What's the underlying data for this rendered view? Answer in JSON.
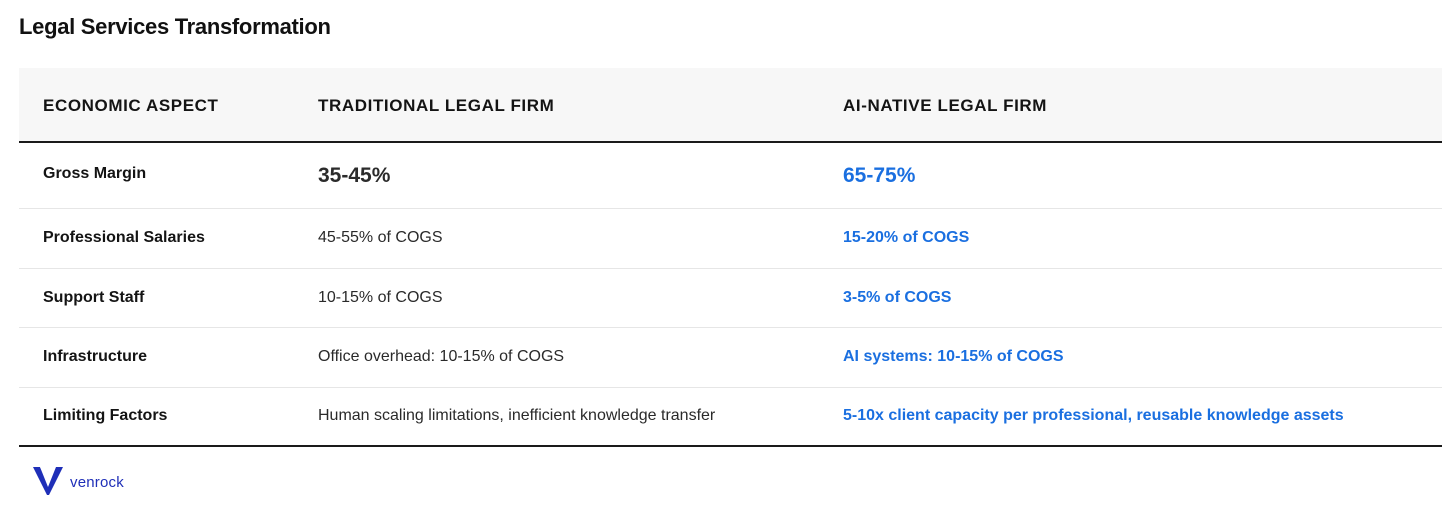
{
  "title": "Legal Services Transformation",
  "table": {
    "headers": [
      "ECONOMIC ASPECT",
      "TRADITIONAL LEGAL FIRM",
      "AI-NATIVE LEGAL FIRM"
    ],
    "rows": [
      {
        "aspect": "Gross Margin",
        "traditional": "35-45%",
        "ai_native": "65-75%"
      },
      {
        "aspect": "Professional Salaries",
        "traditional": "45-55% of COGS",
        "ai_native": "15-20% of COGS"
      },
      {
        "aspect": "Support Staff",
        "traditional": "10-15% of COGS",
        "ai_native": "3-5% of COGS"
      },
      {
        "aspect": "Infrastructure",
        "traditional": "Office overhead: 10-15% of COGS",
        "ai_native": "AI systems: 10-15% of COGS"
      },
      {
        "aspect": "Limiting Factors",
        "traditional": "Human scaling limitations, inefficient knowledge transfer",
        "ai_native": "5-10x client capacity per professional, reusable knowledge assets"
      }
    ]
  },
  "logo": {
    "text": "venrock",
    "icon": "venrock-v-logo-icon",
    "color": "#1f2fb8"
  },
  "colors": {
    "accent": "#1a6fe0",
    "header_bg": "#f7f7f7",
    "rule": "#1a1a1a"
  }
}
